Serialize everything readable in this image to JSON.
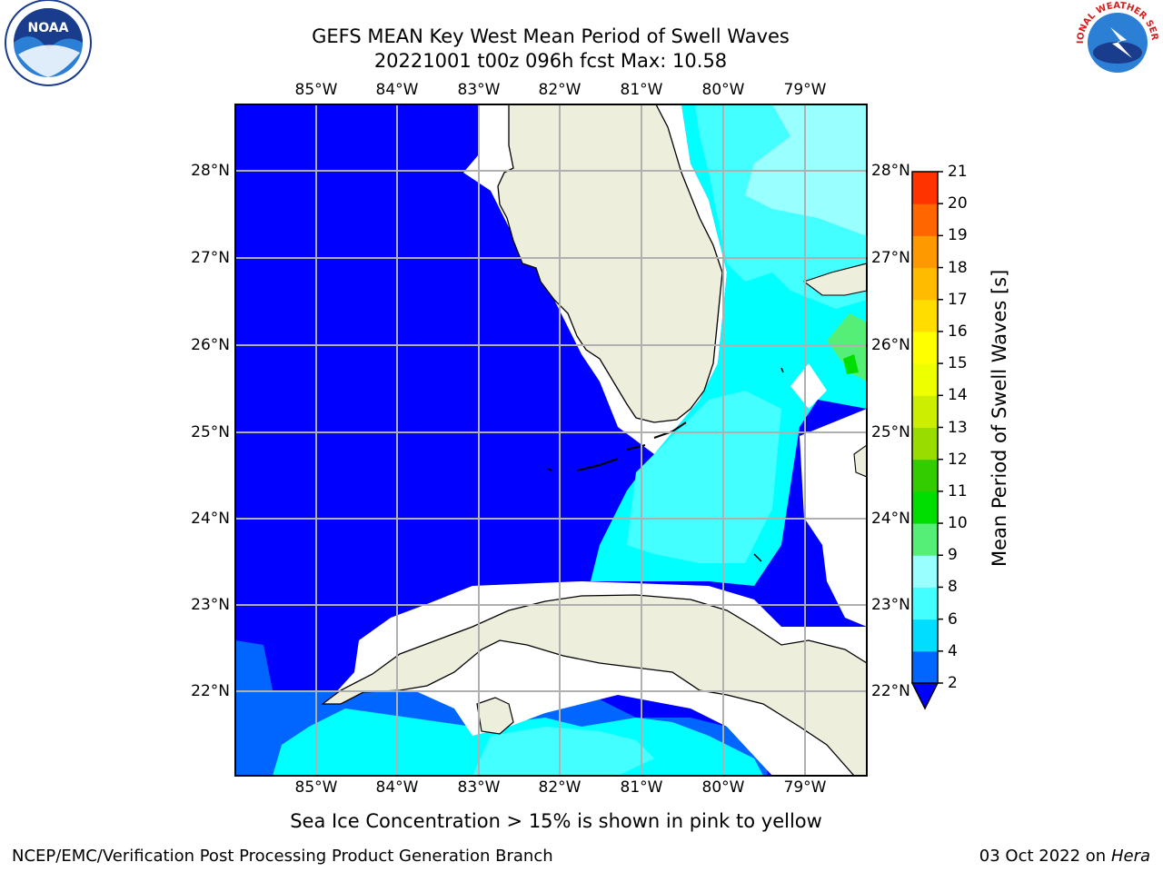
{
  "title": {
    "line1": "GEFS MEAN Key West Mean Period of Swell Waves",
    "line2": "20221001 t00z 096h fcst   Max: 10.58"
  },
  "axes": {
    "lon_labels": [
      "85°W",
      "84°W",
      "83°W",
      "82°W",
      "81°W",
      "80°W",
      "79°W"
    ],
    "lat_labels": [
      "28°N",
      "27°N",
      "26°N",
      "25°N",
      "24°N",
      "23°N",
      "22°N"
    ]
  },
  "colorbar": {
    "label": "Mean Period of Swell Waves [s]",
    "ticks": [
      "2",
      "4",
      "6",
      "8",
      "9",
      "10",
      "11",
      "12",
      "13",
      "14",
      "15",
      "16",
      "17",
      "18",
      "19",
      "20",
      "21"
    ],
    "colors": [
      "#0066ff",
      "#00ddff",
      "#44ffff",
      "#99ffff",
      "#55ee77",
      "#00dd00",
      "#33cc00",
      "#99dd00",
      "#ccee00",
      "#eeff00",
      "#ffff00",
      "#ffdd00",
      "#ffbb00",
      "#ff9900",
      "#ff6600",
      "#ff3300",
      "#ff0000"
    ],
    "extend_color": "#0000ff"
  },
  "colors": {
    "ocean_low": "#0000ff",
    "land": "#eeeedd",
    "grid": "#b0b0b0"
  },
  "logos": {
    "noaa_text": "NOAA",
    "nws_text": "NATIONAL WEATHER SERVICE"
  },
  "note": "Sea Ice Concentration > 15% is shown in pink to yellow",
  "footer": {
    "left": "NCEP/EMC/Verification Post Processing Product Generation Branch",
    "date": "03 Oct 2022 on ",
    "machine": "Hera"
  }
}
